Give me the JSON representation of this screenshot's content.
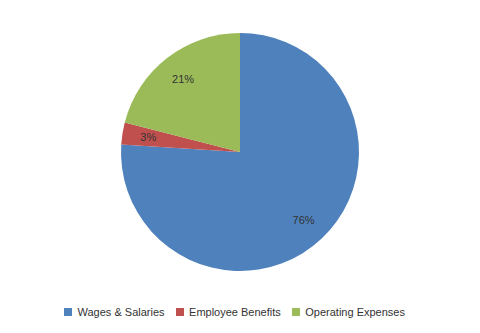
{
  "chart_data": {
    "type": "pie",
    "categories": [
      "Wages & Salaries",
      "Employee Benefits",
      "Operating Expenses"
    ],
    "values": [
      76,
      3,
      21
    ],
    "value_labels": [
      "76%",
      "3%",
      "21%"
    ],
    "colors": [
      "#4f81bd",
      "#c0504d",
      "#9bbb59"
    ],
    "data_labels": true,
    "legend": "bottom"
  }
}
